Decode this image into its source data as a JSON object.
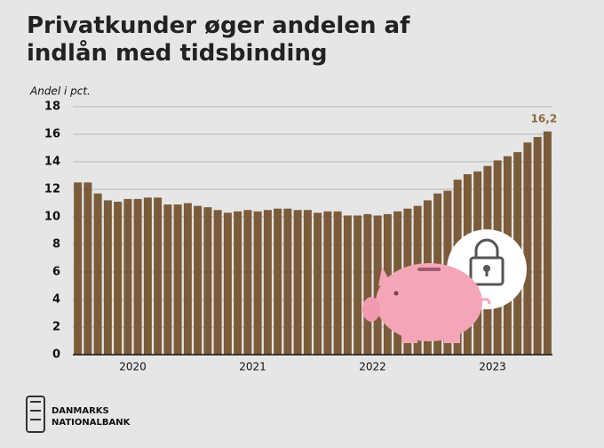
{
  "chart_data": {
    "type": "bar",
    "title": "Privatkunder øger andelen af indlån med tidsbinding",
    "y_axis_label": "Andel i pct.",
    "categories": [
      null,
      null,
      null,
      null,
      null,
      "2020",
      null,
      null,
      null,
      null,
      null,
      null,
      null,
      null,
      null,
      null,
      null,
      "2021",
      null,
      null,
      null,
      null,
      null,
      null,
      null,
      null,
      null,
      null,
      null,
      "2022",
      null,
      null,
      null,
      null,
      null,
      null,
      null,
      null,
      null,
      null,
      null,
      "2023",
      null,
      null,
      null,
      null,
      null,
      null
    ],
    "values": [
      12.5,
      12.5,
      11.7,
      11.2,
      11.1,
      11.3,
      11.3,
      11.4,
      11.4,
      10.9,
      10.9,
      11.0,
      10.8,
      10.7,
      10.5,
      10.3,
      10.4,
      10.5,
      10.4,
      10.5,
      10.6,
      10.6,
      10.5,
      10.5,
      10.3,
      10.4,
      10.4,
      10.1,
      10.1,
      10.2,
      10.1,
      10.2,
      10.4,
      10.6,
      10.8,
      11.2,
      11.7,
      11.9,
      12.7,
      13.1,
      13.3,
      13.7,
      14.1,
      14.4,
      14.7,
      15.4,
      15.8,
      16.2
    ],
    "value_labels": [
      null,
      null,
      null,
      null,
      null,
      null,
      null,
      null,
      null,
      null,
      null,
      null,
      null,
      null,
      null,
      null,
      null,
      null,
      null,
      null,
      null,
      null,
      null,
      null,
      null,
      null,
      null,
      null,
      null,
      null,
      null,
      null,
      null,
      null,
      null,
      null,
      null,
      null,
      null,
      null,
      null,
      null,
      null,
      null,
      null,
      null,
      null,
      "16,2"
    ],
    "color": "#7a5c3a",
    "ylim": [
      0,
      18
    ],
    "yticks": [
      0,
      2,
      4,
      6,
      8,
      10,
      12,
      14,
      16,
      18
    ],
    "grid": true,
    "source_lines": [
      "DANMARKS",
      "NATIONALBANK"
    ]
  }
}
